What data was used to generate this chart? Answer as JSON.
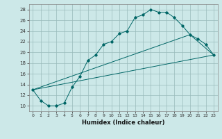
{
  "xlabel": "Humidex (Indice chaleur)",
  "background_color": "#cce8e8",
  "grid_color": "#99bbbb",
  "line_color": "#006666",
  "xlim": [
    -0.5,
    23.5
  ],
  "ylim": [
    9,
    29
  ],
  "xticks": [
    0,
    1,
    2,
    3,
    4,
    5,
    6,
    7,
    8,
    9,
    10,
    11,
    12,
    13,
    14,
    15,
    16,
    17,
    18,
    19,
    20,
    21,
    22,
    23
  ],
  "yticks": [
    10,
    12,
    14,
    16,
    18,
    20,
    22,
    24,
    26,
    28
  ],
  "line1_x": [
    0,
    1,
    2,
    3,
    4,
    5,
    6,
    7,
    8,
    9,
    10,
    11,
    12,
    13,
    14,
    15,
    16,
    17,
    18,
    19,
    20,
    21,
    22,
    23
  ],
  "line1_y": [
    13,
    11,
    10,
    10,
    10.5,
    13.5,
    15.5,
    18.5,
    19.5,
    21.5,
    22,
    23.5,
    24,
    26.5,
    27,
    28,
    27.5,
    27.5,
    26.5,
    25,
    23.3,
    22.5,
    21.5,
    19.5
  ],
  "line2_x": [
    0,
    20,
    23
  ],
  "line2_y": [
    13,
    23.3,
    19.5
  ],
  "line3_x": [
    0,
    23
  ],
  "line3_y": [
    13,
    19.5
  ]
}
